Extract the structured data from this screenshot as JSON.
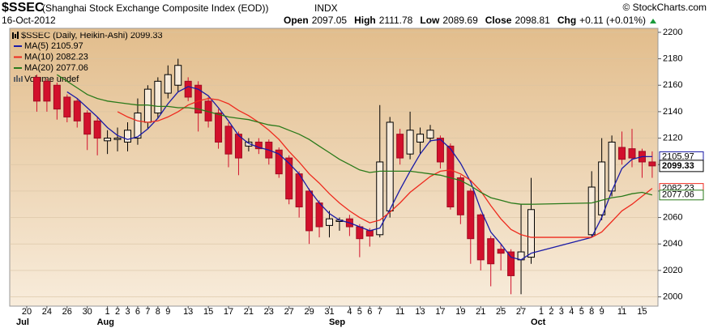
{
  "header": {
    "symbol": "$SSEC",
    "name": "(Shanghai Stock Exchange Composite Index (EOD))",
    "exchange": "INDX",
    "copyright": "© StockCharts.com",
    "date": "16-Oct-2012",
    "quote": [
      {
        "label": "Open",
        "value": 2097.05
      },
      {
        "label": "High",
        "value": 2111.78
      },
      {
        "label": "Low",
        "value": 2089.69
      },
      {
        "label": "Close",
        "value": 2098.81
      },
      {
        "label": "Chg",
        "value": "+0.11 (+0.01%)"
      }
    ]
  },
  "chart_data": {
    "type": "candlestick",
    "title": "$SSEC (Daily, Heikin-Ashi) 2099.33",
    "close_tag": "2099.33",
    "volume_label": "Volume undef",
    "up_color": "#000000",
    "down_color": "#d2102c",
    "grid": true,
    "connect_gaps": true,
    "categories": [
      "20",
      null,
      "24",
      null,
      "26",
      null,
      "30",
      null,
      "1",
      "2",
      "3",
      "6",
      "7",
      "8",
      "9",
      null,
      "13",
      null,
      "15",
      null,
      "17",
      null,
      "21",
      null,
      "23",
      null,
      "27",
      null,
      "29",
      null,
      "31",
      null,
      "4",
      "5",
      "6",
      "7",
      null,
      "11",
      null,
      "13",
      null,
      "17",
      null,
      "19",
      null,
      "21",
      null,
      "25",
      null,
      "27",
      null,
      "1",
      "2",
      "3",
      "4",
      "5",
      "8",
      "9",
      null,
      "11",
      null,
      "15",
      null
    ],
    "months": [
      "Jul",
      null,
      null,
      null,
      null,
      null,
      null,
      null,
      "Aug",
      null,
      null,
      null,
      null,
      null,
      null,
      null,
      null,
      null,
      null,
      null,
      null,
      null,
      null,
      null,
      null,
      null,
      null,
      null,
      null,
      null,
      null,
      "Sep",
      null,
      null,
      null,
      null,
      null,
      null,
      null,
      null,
      null,
      null,
      null,
      null,
      null,
      null,
      null,
      null,
      null,
      null,
      null,
      "Oct",
      null,
      null,
      null,
      null,
      null,
      null,
      null,
      null,
      null,
      null,
      null
    ],
    "ohlc": [
      null,
      [
        2166,
        2168,
        2140,
        2148
      ],
      [
        2163,
        2165,
        2140,
        2148
      ],
      [
        2160,
        2162,
        2134,
        2142
      ],
      [
        2151,
        2153,
        2132,
        2136
      ],
      [
        2148,
        2150,
        2128,
        2133
      ],
      [
        2139,
        2141,
        2111,
        2123
      ],
      [
        2133,
        2136,
        2107,
        2120
      ],
      [
        2118,
        2126,
        2108,
        2120
      ],
      [
        2119,
        2128,
        2110,
        2120
      ],
      [
        2117,
        2132,
        2110,
        2126
      ],
      [
        2120,
        2150,
        2115,
        2139
      ],
      [
        2132,
        2160,
        2127,
        2157
      ],
      [
        2139,
        2166,
        2135,
        2163
      ],
      [
        2154,
        2175,
        2150,
        2168
      ],
      [
        2160,
        2180,
        2155,
        2175
      ],
      [
        2163,
        2166,
        2148,
        2151
      ],
      [
        2160,
        2163,
        2125,
        2139
      ],
      [
        2148,
        2151,
        2128,
        2133
      ],
      [
        2139,
        2142,
        2112,
        2117
      ],
      [
        2129,
        2132,
        2098,
        2108
      ],
      [
        2123,
        2125,
        2092,
        2105
      ],
      [
        2114,
        2120,
        2110,
        2117
      ],
      [
        2117,
        2120,
        2108,
        2112
      ],
      [
        2117,
        2119,
        2100,
        2105
      ],
      [
        2111,
        2113,
        2090,
        2093
      ],
      [
        2105,
        2107,
        2070,
        2074
      ],
      [
        2093,
        2095,
        2060,
        2068
      ],
      [
        2080,
        2082,
        2040,
        2050
      ],
      [
        2071,
        2073,
        2045,
        2053
      ],
      [
        2054,
        2065,
        2045,
        2059
      ],
      [
        2057,
        2060,
        2050,
        2058
      ],
      [
        2059,
        2062,
        2046,
        2053
      ],
      [
        2053,
        2055,
        2030,
        2044
      ],
      [
        2050,
        2052,
        2038,
        2046
      ],
      [
        2047,
        2145,
        2045,
        2102
      ],
      [
        2065,
        2136,
        2060,
        2132
      ],
      [
        2123,
        2127,
        2100,
        2105
      ],
      [
        2108,
        2140,
        2104,
        2126
      ],
      [
        2117,
        2128,
        2108,
        2123
      ],
      [
        2120,
        2130,
        2117,
        2126
      ],
      [
        2120,
        2122,
        2097,
        2102
      ],
      [
        2114,
        2116,
        2066,
        2068
      ],
      [
        2090,
        2092,
        2055,
        2062
      ],
      [
        2080,
        2082,
        2025,
        2044
      ],
      [
        2062,
        2063,
        2020,
        2028
      ],
      [
        2044,
        2046,
        2008,
        2025
      ],
      [
        2036,
        2040,
        2020,
        2033
      ],
      [
        2034,
        2036,
        2002,
        2016
      ],
      [
        2028,
        2070,
        2002,
        2034
      ],
      [
        2030,
        2090,
        2025,
        2066
      ],
      null,
      null,
      null,
      null,
      null,
      [
        2047,
        2095,
        2045,
        2083
      ],
      [
        2062,
        2120,
        2058,
        2102
      ],
      [
        2080,
        2122,
        2076,
        2117
      ],
      [
        2113,
        2125,
        2100,
        2104
      ],
      [
        2112,
        2127,
        2098,
        2105
      ],
      [
        2110,
        2112,
        2090,
        2102
      ],
      [
        2102,
        2110,
        2090,
        2099
      ]
    ],
    "series": [
      {
        "name": "MA(5) 2105.97",
        "tag": "2105.97",
        "color": "#1a1aa6",
        "values": [
          null,
          null,
          null,
          null,
          2155,
          2150,
          2143,
          2136,
          2128,
          2122,
          2119,
          2121,
          2127,
          2135,
          2146,
          2155,
          2159,
          2157,
          2152,
          2143,
          2133,
          2122,
          2116,
          2113,
          2111,
          2108,
          2101,
          2093,
          2081,
          2071,
          2063,
          2058,
          2056,
          2053,
          2050,
          2052,
          2066,
          2081,
          2095,
          2108,
          2118,
          2119,
          2112,
          2101,
          2087,
          2066,
          2049,
          2040,
          2030,
          2028,
          2033,
          null,
          null,
          null,
          null,
          null,
          2045,
          2060,
          2080,
          2097,
          2104,
          2106,
          2106
        ]
      },
      {
        "name": "MA(10) 2082.23",
        "tag": "2082.23",
        "color": "#ee2a1e",
        "values": [
          null,
          null,
          null,
          null,
          null,
          null,
          null,
          null,
          null,
          2140,
          2136,
          2133,
          2132,
          2133,
          2136,
          2140,
          2145,
          2148,
          2150,
          2149,
          2146,
          2141,
          2137,
          2132,
          2126,
          2119,
          2110,
          2102,
          2093,
          2086,
          2078,
          2071,
          2065,
          2060,
          2056,
          2058,
          2064,
          2071,
          2079,
          2085,
          2091,
          2095,
          2096,
          2093,
          2088,
          2080,
          2069,
          2059,
          2051,
          2047,
          2045,
          null,
          null,
          null,
          null,
          null,
          2045,
          2049,
          2057,
          2065,
          2070,
          2076,
          2082
        ]
      },
      {
        "name": "MA(20) 2077.06",
        "tag": "2077.06",
        "color": "#2a7a1a",
        "values": [
          null,
          null,
          null,
          2168,
          2163,
          2158,
          2153,
          2150,
          2148,
          2147,
          2146,
          2145,
          2145,
          2144,
          2144,
          2143,
          2143,
          2142,
          2140,
          2138,
          2136,
          2135,
          2134,
          2132,
          2130,
          2129,
          2126,
          2123,
          2119,
          2114,
          2109,
          2104,
          2100,
          2096,
          2094,
          2095,
          2095,
          2095,
          2095,
          2094,
          2093,
          2092,
          2090,
          2088,
          2084,
          2079,
          2075,
          2073,
          2071,
          2070,
          2070,
          null,
          null,
          null,
          null,
          null,
          2071,
          2073,
          2075,
          2076,
          2078,
          2079,
          2077
        ]
      }
    ],
    "ylim": [
      1993,
      2203
    ],
    "yticks": [
      2000,
      2020,
      2040,
      2060,
      2080,
      2100,
      2120,
      2140,
      2160,
      2180,
      2200
    ]
  }
}
